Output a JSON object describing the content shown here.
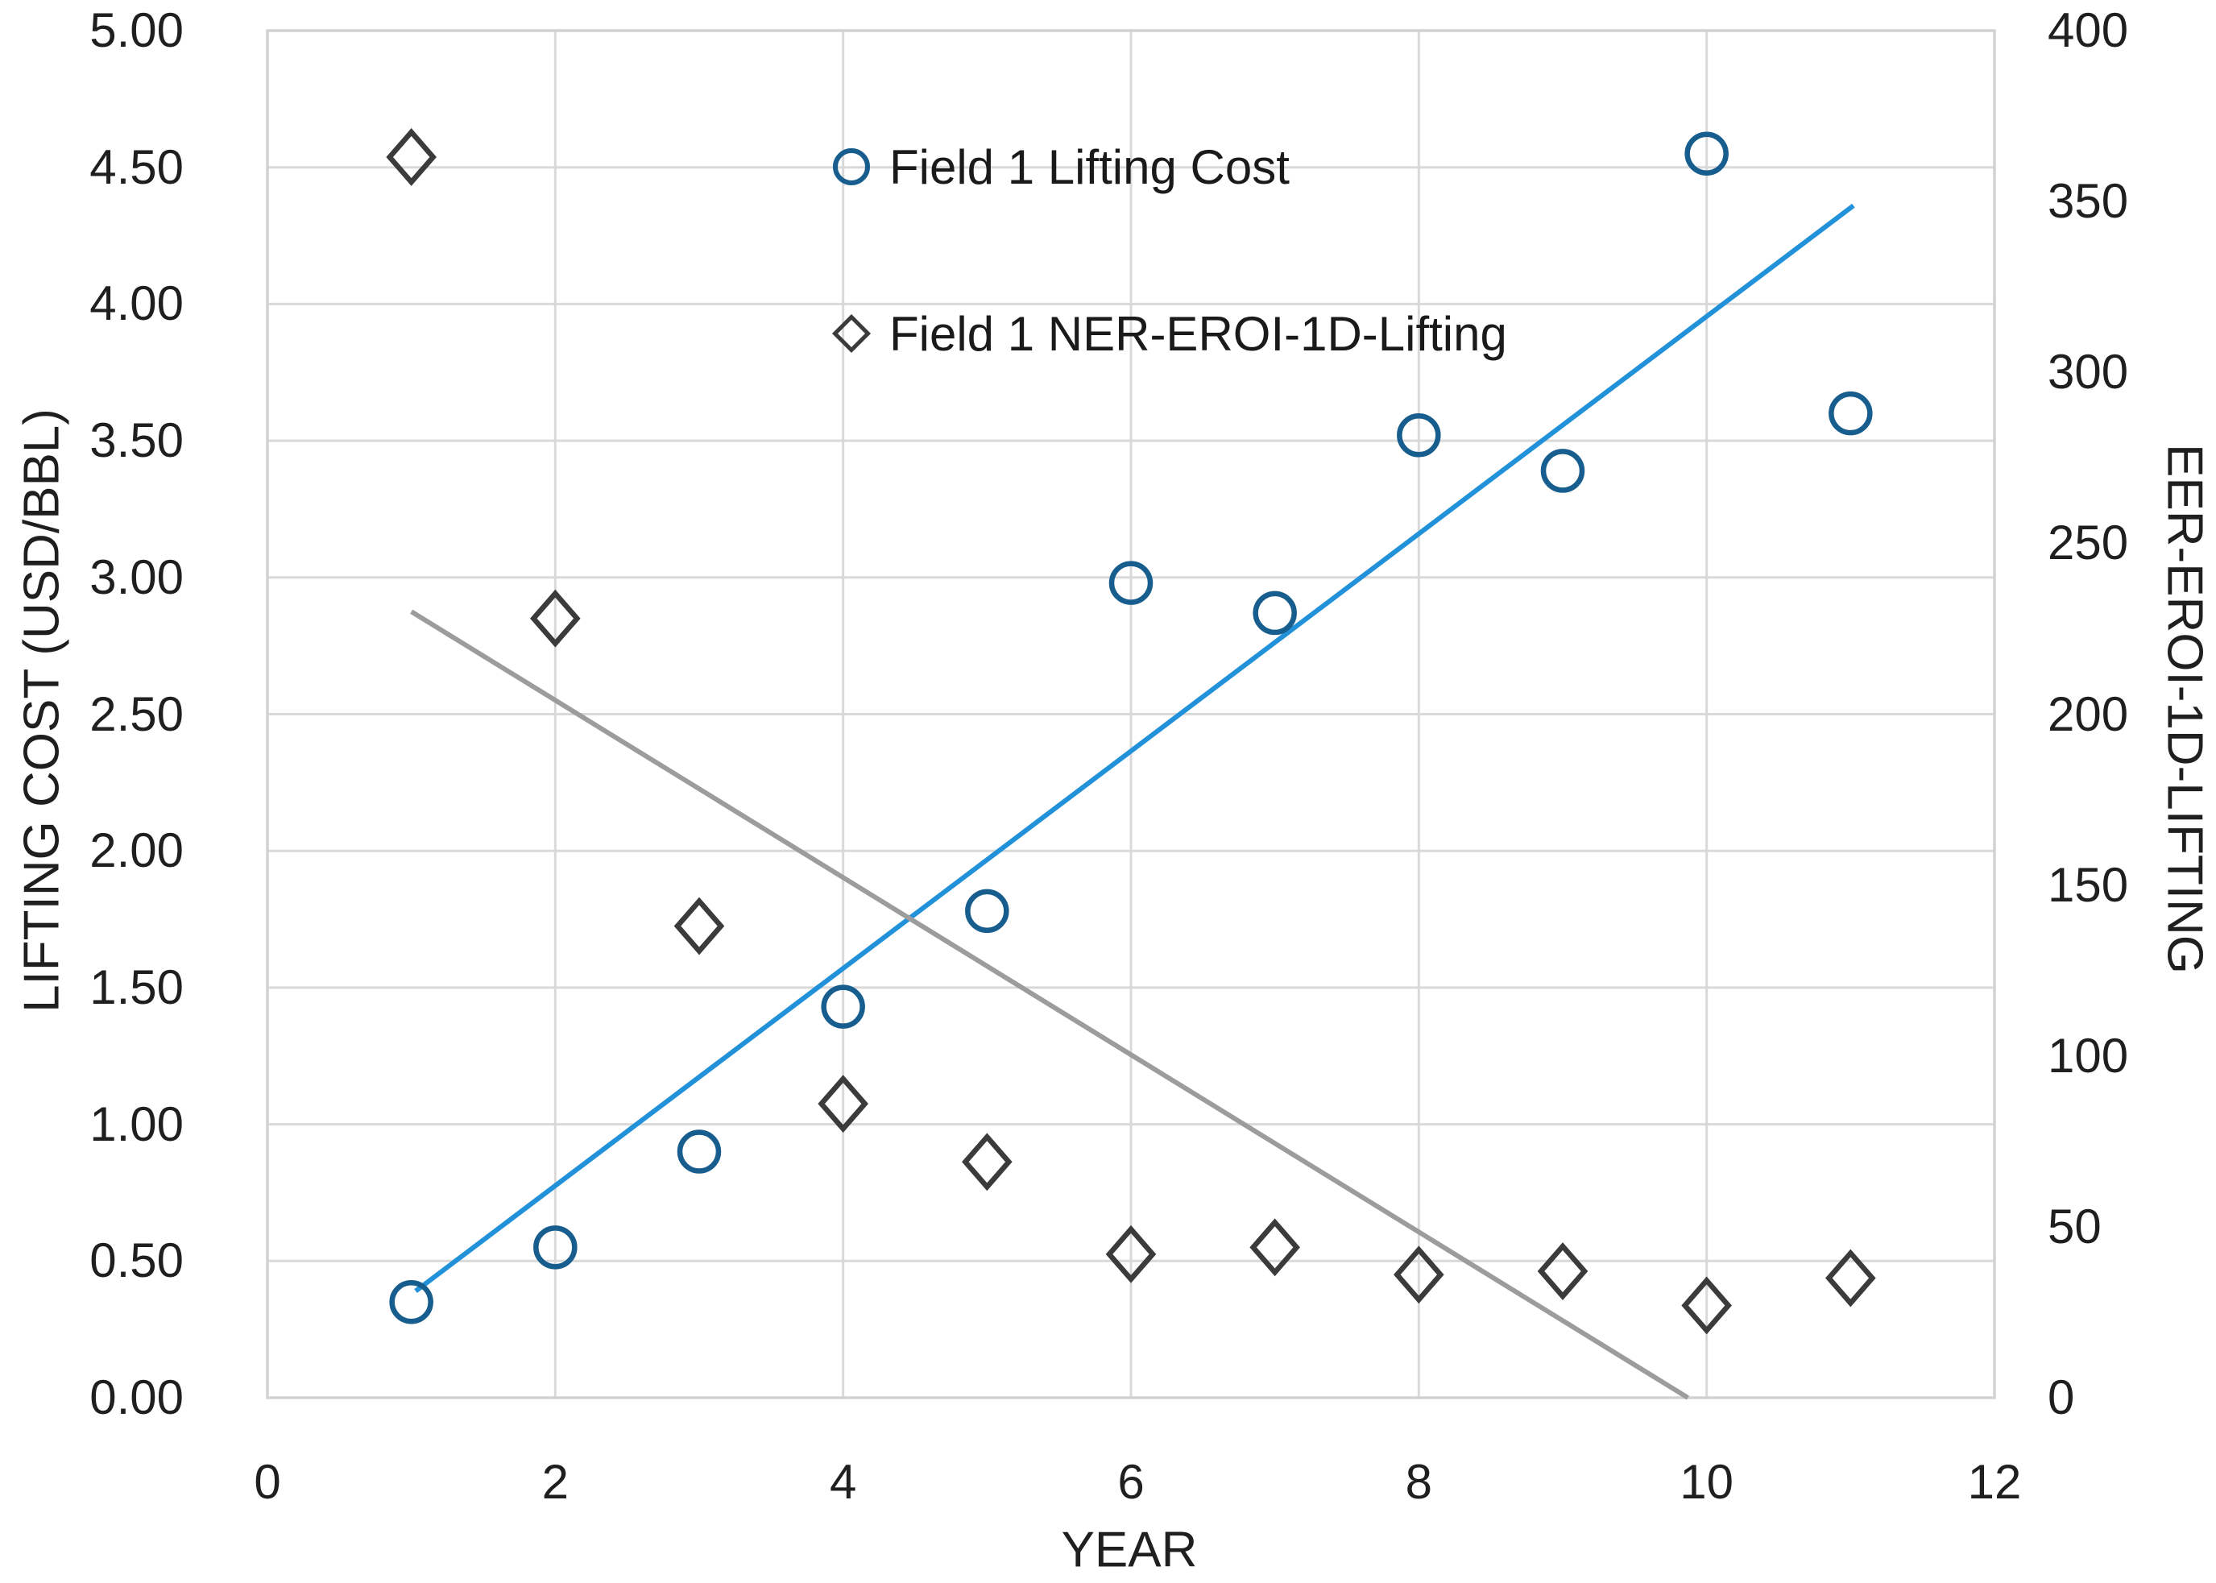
{
  "chart_data": {
    "type": "scatter",
    "title": "",
    "xlabel": "YEAR",
    "ylabel_left": "LIFTING COST (USD/BBL)",
    "ylabel_right": "EER-EROI-1D-LIFTING",
    "xlim": [
      0,
      12
    ],
    "ylim_left": [
      0,
      5
    ],
    "ylim_right": [
      0,
      400
    ],
    "xticks": [
      "0",
      "2",
      "4",
      "6",
      "8",
      "10",
      "12"
    ],
    "yticks_left": [
      "0.00",
      "0.50",
      "1.00",
      "1.50",
      "2.00",
      "2.50",
      "3.00",
      "3.50",
      "4.00",
      "4.50",
      "5.00"
    ],
    "yticks_right": [
      "0",
      "50",
      "100",
      "150",
      "200",
      "250",
      "300",
      "350",
      "400"
    ],
    "grid": true,
    "legend_position": "inside-top-center",
    "x": [
      1,
      2,
      3,
      4,
      5,
      6,
      7,
      8,
      9,
      10,
      11
    ],
    "series": [
      {
        "name": "Field 1 Lifting Cost",
        "axis": "left",
        "marker": "circle",
        "color": "#175d8d",
        "values": [
          0.35,
          0.55,
          0.9,
          1.43,
          1.78,
          2.98,
          2.87,
          3.52,
          3.39,
          4.55,
          3.6
        ]
      },
      {
        "name": "Field 1 NER-EROI-1D-Lifting",
        "axis": "right",
        "marker": "diamond",
        "color": "#3b3b3b",
        "values": [
          363,
          228,
          138,
          86,
          69,
          42,
          44,
          36,
          37,
          27,
          35
        ]
      }
    ],
    "trendlines": [
      {
        "for": "Field 1 Lifting Cost",
        "axis": "left",
        "color": "#2191d9",
        "x1": 1.03,
        "y1": 0.39,
        "x2": 11.02,
        "y2": 4.36
      },
      {
        "for": "Field 1 NER-EROI-1D-Lifting",
        "axis": "right",
        "color": "#9c9c9c",
        "x1": 1.0,
        "y1": 230,
        "x2": 9.87,
        "y2": 0
      }
    ],
    "colors": {
      "gridline": "#d9d9d9",
      "plot_border": "#d2d2d2",
      "text": "#1f1f1f"
    }
  }
}
